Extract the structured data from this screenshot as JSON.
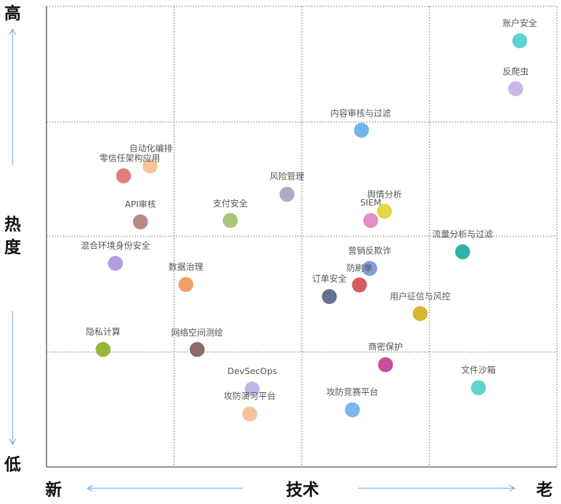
{
  "chart_data": {
    "type": "scatter",
    "title": "",
    "x_axis": {
      "label": "技术",
      "low_label": "新",
      "high_label": "老",
      "range": [
        0,
        100
      ]
    },
    "y_axis": {
      "label": "热度",
      "low_label": "低",
      "high_label": "高",
      "range": [
        0,
        100
      ]
    },
    "grid": "dotted 4x4",
    "points": [
      {
        "name": "账户安全",
        "x": 92.7,
        "y": 92.5,
        "color": "#5fd4d2"
      },
      {
        "name": "反爬虫",
        "x": 91.9,
        "y": 82.1,
        "color": "#c9b8e6"
      },
      {
        "name": "内容审核与过滤",
        "x": 61.7,
        "y": 73.1,
        "color": "#72b4ec"
      },
      {
        "name": "自动化编排",
        "x": 20.3,
        "y": 65.3,
        "color": "#f8c39c"
      },
      {
        "name": "零信任架构应用",
        "x": 15.1,
        "y": 63.2,
        "color": "#e07f7e"
      },
      {
        "name": "风险管理",
        "x": 47.1,
        "y": 59.2,
        "color": "#a6afc4"
      },
      {
        "name": "舆情分析",
        "x": 66.2,
        "y": 55.5,
        "color": "#e3d543"
      },
      {
        "name": "SIEM",
        "x": 63.5,
        "y": 53.5,
        "color": "#e68dc3"
      },
      {
        "name": "API审核",
        "x": 18.4,
        "y": 53.2,
        "color": "#b88a84"
      },
      {
        "name": "支付安全",
        "x": 36.0,
        "y": 53.5,
        "color": "#a9c57a"
      },
      {
        "name": "流量分析与过滤",
        "x": 81.5,
        "y": 46.7,
        "color": "#2fb1ad"
      },
      {
        "name": "混合环境身份安全",
        "x": 13.5,
        "y": 44.2,
        "color": "#b29de0"
      },
      {
        "name": "营销反欺诈",
        "x": 63.3,
        "y": 43.1,
        "color": "#7e9fd3"
      },
      {
        "name": "数据治理",
        "x": 27.3,
        "y": 39.6,
        "color": "#f4a06a"
      },
      {
        "name": "防刷单",
        "x": 61.3,
        "y": 39.5,
        "color": "#d65c63"
      },
      {
        "name": "订单安全",
        "x": 55.4,
        "y": 37.0,
        "color": "#657093"
      },
      {
        "name": "用户征信与风控",
        "x": 73.2,
        "y": 33.3,
        "color": "#d3b72c"
      },
      {
        "name": "隐私计算",
        "x": 11.1,
        "y": 25.5,
        "color": "#93b83a"
      },
      {
        "name": "网络空间测绘",
        "x": 29.5,
        "y": 25.5,
        "color": "#8c6c6c"
      },
      {
        "name": "商密保护",
        "x": 66.4,
        "y": 22.2,
        "color": "#c84f9c"
      },
      {
        "name": "文件沙箱",
        "x": 84.6,
        "y": 17.2,
        "color": "#5fd4d2"
      },
      {
        "name": "DevSecOps",
        "x": 40.3,
        "y": 16.9,
        "color": "#c5b3e8"
      },
      {
        "name": "攻防竞赛平台",
        "x": 59.9,
        "y": 12.4,
        "color": "#7bb7ec"
      },
      {
        "name": "攻防演习平台",
        "x": 39.8,
        "y": 11.5,
        "color": "#f8c39c"
      }
    ]
  }
}
